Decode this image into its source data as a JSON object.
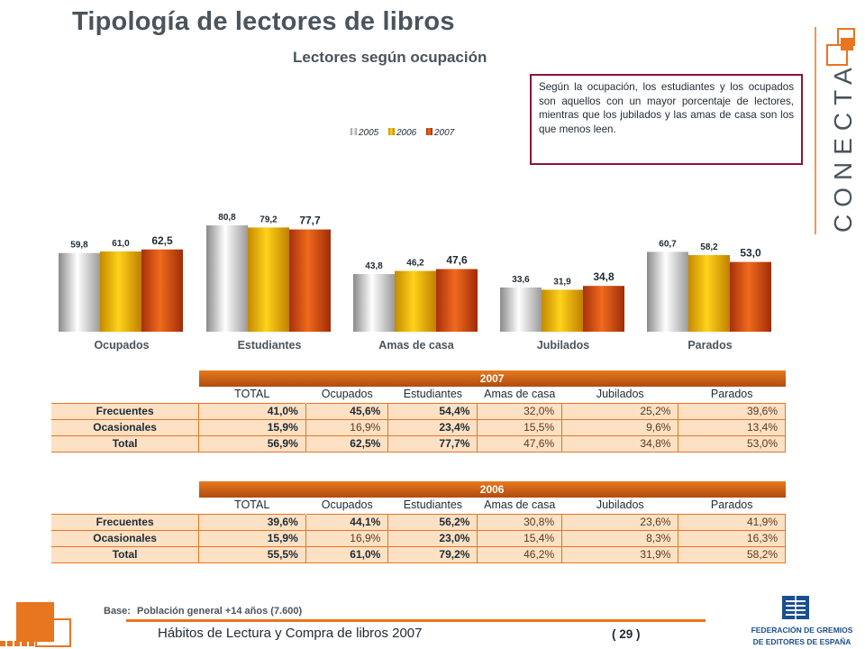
{
  "header": {
    "title": "Tipología de lectores de libros",
    "subtitle": "Lectores según ocupación"
  },
  "callout": {
    "text": "Según la ocupación, los estudiantes y los ocupados son aquellos con un mayor porcentaje de lectores, mientras que los jubilados y las amas de casa son los que menos leen."
  },
  "brand": {
    "conecta_logo": "CONECTA",
    "colors": {
      "accent": "#e8751f",
      "callout_border": "#8a1538",
      "row_highlight": "#fce1c5",
      "brand_blue": "#1a4f8f"
    }
  },
  "chart_data": {
    "type": "bar",
    "categories": [
      "Ocupados",
      "Estudiantes",
      "Amas de casa",
      "Jubilados",
      "Parados"
    ],
    "series": [
      {
        "name": "2005",
        "values": [
          59.8,
          80.8,
          43.8,
          33.6,
          60.7
        ],
        "labels": [
          "59,8",
          "80,8",
          "43,8",
          "33,6",
          "60,7"
        ],
        "color": "#d9d9d9"
      },
      {
        "name": "2006",
        "values": [
          61.0,
          79.2,
          46.2,
          31.9,
          58.2
        ],
        "labels": [
          "61,0",
          "79,2",
          "46,2",
          "31,9",
          "58,2"
        ],
        "color": "#f0b400"
      },
      {
        "name": "2007",
        "values": [
          62.5,
          77.7,
          47.6,
          34.8,
          53.0
        ],
        "labels": [
          "62,5",
          "77,7",
          "47,6",
          "34,8",
          "53,0"
        ],
        "color": "#d2500f"
      }
    ],
    "ylim": [
      0,
      100
    ],
    "grid": false,
    "legend": "top-center"
  },
  "tables": [
    {
      "year": "2007",
      "columns": [
        "TOTAL",
        "Ocupados",
        "Estudiantes",
        "Amas de casa",
        "Jubilados",
        "Parados"
      ],
      "rows": [
        {
          "label": "Frecuentes",
          "cells": [
            "41,0%",
            "45,6%",
            "54,4%",
            "32,0%",
            "25,2%",
            "39,6%"
          ]
        },
        {
          "label": "Ocasionales",
          "cells": [
            "15,9%",
            "16,9%",
            "23,4%",
            "15,5%",
            "9,6%",
            "13,4%"
          ]
        },
        {
          "label": "Total",
          "cells": [
            "56,9%",
            "62,5%",
            "77,7%",
            "47,6%",
            "34,8%",
            "53,0%"
          ]
        }
      ]
    },
    {
      "year": "2006",
      "columns": [
        "TOTAL",
        "Ocupados",
        "Estudiantes",
        "Amas de casa",
        "Jubilados",
        "Parados"
      ],
      "rows": [
        {
          "label": "Frecuentes",
          "cells": [
            "39,6%",
            "44,1%",
            "56,2%",
            "30,8%",
            "23,6%",
            "41,9%"
          ]
        },
        {
          "label": "Ocasionales",
          "cells": [
            "15,9%",
            "16,9%",
            "23,0%",
            "15,4%",
            "8,3%",
            "16,3%"
          ]
        },
        {
          "label": "Total",
          "cells": [
            "55,5%",
            "61,0%",
            "79,2%",
            "46,2%",
            "31,9%",
            "58,2%"
          ]
        }
      ]
    }
  ],
  "footer": {
    "base_label": "Base:",
    "base_text": "Población general +14 años (7.600)",
    "doc_title": "Hábitos de Lectura y Compra de libros 2007",
    "page": "( 29 )",
    "fge_line1": "FEDERACIÓN DE GREMIOS",
    "fge_line2": "DE EDITORES DE ESPAÑA"
  }
}
